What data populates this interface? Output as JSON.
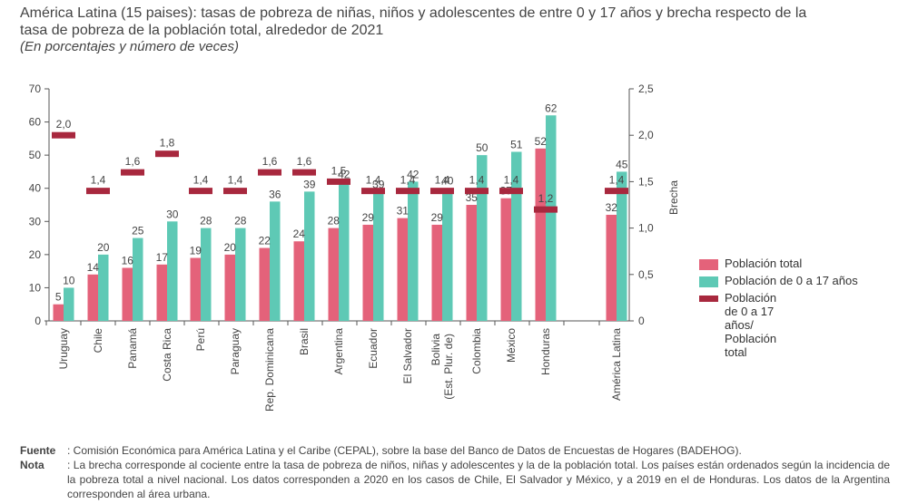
{
  "header": {
    "title": "América Latina (15 paises): tasas de pobreza de niñas, niños y adolescentes de entre 0 y 17 años y brecha respecto de la tasa de pobreza de la población total, alrededor de 2021",
    "subtitle": "(En porcentajes y número de veces)"
  },
  "colors": {
    "total": "#e4627a",
    "children": "#5ec9b5",
    "gap": "#a8283e",
    "axis": "#555555",
    "text": "#444444"
  },
  "chart_data": {
    "type": "bar",
    "categories": [
      "Uruguay",
      "Chile",
      "Panamá",
      "Costa Rica",
      "Perú",
      "Paraguay",
      "Rep. Dominicana",
      "Brasil",
      "Argentina",
      "Ecuador",
      "El Salvador",
      "Bolivia\n(Est. Plur. de)",
      "Colombia",
      "México",
      "Honduras",
      "América Latina"
    ],
    "series": [
      {
        "name": "Población total",
        "axis": "left",
        "values": [
          5,
          14,
          16,
          17,
          19,
          20,
          22,
          24,
          28,
          29,
          31,
          29,
          35,
          37,
          52,
          32
        ],
        "labels": [
          "5",
          "14",
          "16",
          "17",
          "19",
          "20",
          "22",
          "24",
          "28",
          "29",
          "31",
          "29",
          "35",
          "37",
          "52",
          "32"
        ]
      },
      {
        "name": "Población de 0 a 17 años",
        "axis": "left",
        "values": [
          10,
          20,
          25,
          30,
          28,
          28,
          36,
          39,
          42,
          39,
          42,
          40,
          50,
          51,
          62,
          45
        ],
        "labels": [
          "10",
          "20",
          "25",
          "30",
          "28",
          "28",
          "36",
          "39",
          "42",
          "39",
          "42",
          "40",
          "50",
          "51",
          "62",
          "45"
        ]
      },
      {
        "name": "Población de 0 a 17 años/\nPoblación total",
        "axis": "right",
        "type": "marker",
        "values": [
          2.0,
          1.4,
          1.6,
          1.8,
          1.4,
          1.4,
          1.6,
          1.6,
          1.5,
          1.4,
          1.4,
          1.4,
          1.4,
          1.4,
          1.2,
          1.4
        ],
        "labels": [
          "2,0",
          "1,4",
          "1,6",
          "1,8",
          "1,4",
          "1,4",
          "1,6",
          "1,6",
          "1,5",
          "1,4",
          "1,4",
          "1,4",
          "1,4",
          "1,4",
          "1,2",
          "1,4"
        ]
      }
    ],
    "y_left": {
      "min": 0,
      "max": 70,
      "ticks": [
        0,
        10,
        20,
        30,
        40,
        50,
        60,
        70
      ],
      "tick_labels": [
        "0",
        "10",
        "20",
        "30",
        "40",
        "50",
        "60",
        "70"
      ]
    },
    "y_right": {
      "min": 0,
      "max": 2.5,
      "ticks": [
        0,
        0.5,
        1.0,
        1.5,
        2.0,
        2.5
      ],
      "tick_labels": [
        "0",
        "0,5",
        "1,0",
        "1,5",
        "2,0",
        "2,5"
      ],
      "label": "Brecha"
    },
    "legend_position": "right"
  },
  "legend": {
    "items": [
      {
        "label": "Población total"
      },
      {
        "label": "Población de 0 a 17 años"
      },
      {
        "label": "Población de 0 a 17 años/\nPoblación total"
      }
    ]
  },
  "notes": {
    "source_key": "Fuente",
    "source_text": ": Comisión Económica para América Latina y el Caribe (CEPAL), sobre la base del Banco de Datos de Encuestas de Hogares (BADEHOG).",
    "note_key": "Nota",
    "note_text": ": La brecha corresponde al cociente entre la tasa de pobreza de niños, niñas y adolescentes y la de la población total. Los países están ordenados según la incidencia de la pobreza total a nivel nacional. Los datos corresponden a 2020 en los casos de Chile, El Salvador y México, y a 2019 en el de Honduras. Los datos de la Argentina corresponden al área urbana."
  }
}
